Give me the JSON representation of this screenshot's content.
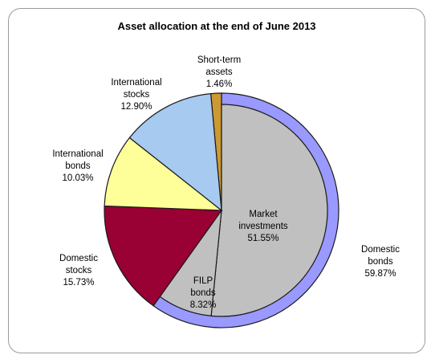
{
  "chart_data": {
    "type": "pie",
    "title": "Asset allocation at the end of June 2013",
    "outer_ring": {
      "name": "Domestic bonds",
      "label_lines": [
        "Domestic",
        "bonds",
        "59.87%"
      ],
      "value": 59.87,
      "color": "#9999ff"
    },
    "slices": [
      {
        "name": "Short-term assets",
        "label_lines": [
          "Short-term",
          "assets",
          "1.46%"
        ],
        "value": 1.46,
        "color": "#cc9933"
      },
      {
        "name": "Market investments",
        "label_lines": [
          "Market",
          "investments",
          "51.55%"
        ],
        "value": 51.55,
        "color": "#c0c0c0"
      },
      {
        "name": "FILP bonds",
        "label_lines": [
          "FILP",
          "bonds",
          "8.32%"
        ],
        "value": 8.32,
        "color": "#c0c0c0"
      },
      {
        "name": "Domestic stocks",
        "label_lines": [
          "Domestic",
          "stocks",
          "15.73%"
        ],
        "value": 15.73,
        "color": "#990033"
      },
      {
        "name": "International bonds",
        "label_lines": [
          "International",
          "bonds",
          "10.03%"
        ],
        "value": 10.03,
        "color": "#ffff99"
      },
      {
        "name": "International stocks",
        "label_lines": [
          "International",
          "stocks",
          "12.90%"
        ],
        "value": 12.9,
        "color": "#a6caf0"
      }
    ]
  }
}
